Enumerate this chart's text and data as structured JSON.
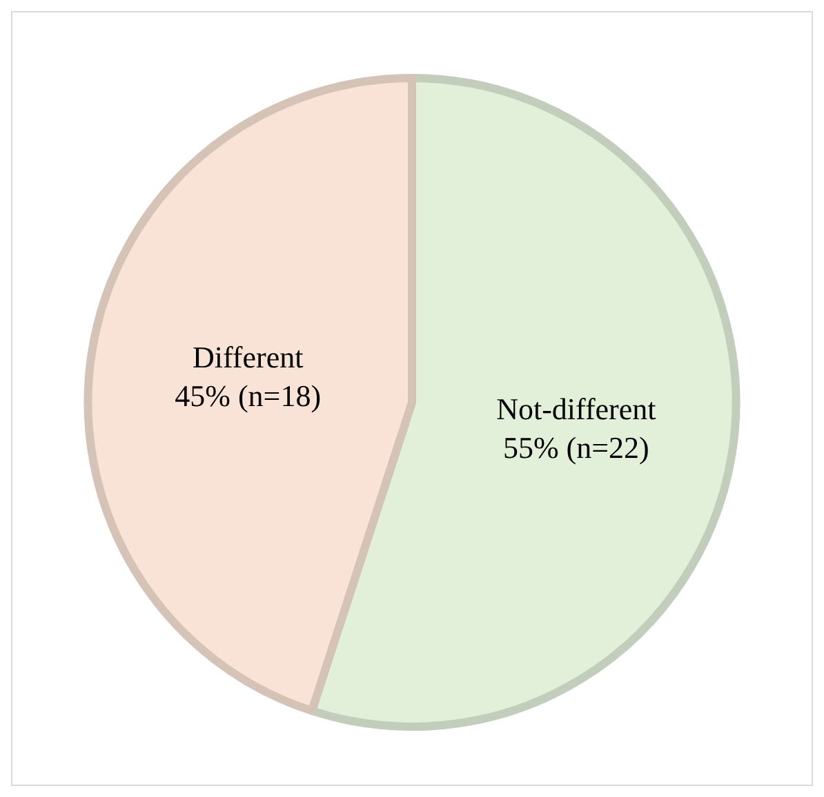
{
  "chart_data": {
    "type": "pie",
    "categories": [
      "Not-different",
      "Different"
    ],
    "values": [
      55,
      45
    ],
    "value_labels": [
      "55% (n=22)",
      "45% (n=18)"
    ],
    "colors": [
      "#e2efd9",
      "#f9e3d6"
    ],
    "legend": false
  }
}
